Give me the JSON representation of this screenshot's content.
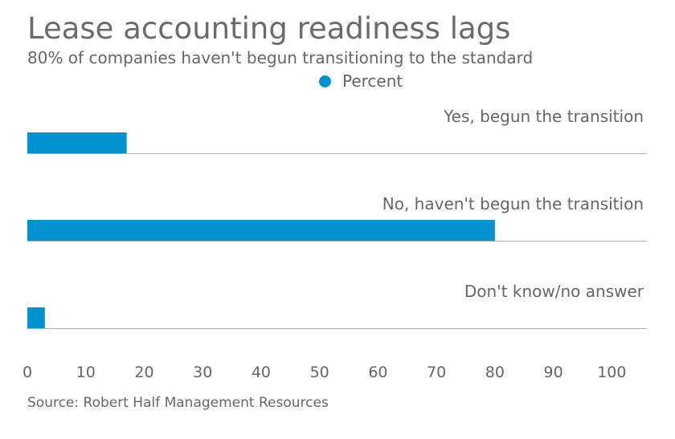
{
  "chart_data": {
    "type": "bar",
    "orientation": "horizontal",
    "title": "Lease accounting readiness lags",
    "subtitle": "80% of companies haven't begun transitioning to the standard",
    "categories": [
      "Yes, begun the transition",
      "No, haven't begun the transition",
      "Don't know/no answer"
    ],
    "series": [
      {
        "name": "Percent",
        "values": [
          17,
          80,
          3
        ]
      }
    ],
    "xlim": [
      0,
      106
    ],
    "xticks": [
      0,
      10,
      20,
      30,
      40,
      50,
      60,
      70,
      80,
      90,
      100
    ],
    "legend_position": "top-center",
    "grid": false,
    "source": "Source: Robert Half Management Resources",
    "colors": {
      "bar": "#0092d1",
      "baseline": "#b3b3b3"
    }
  }
}
